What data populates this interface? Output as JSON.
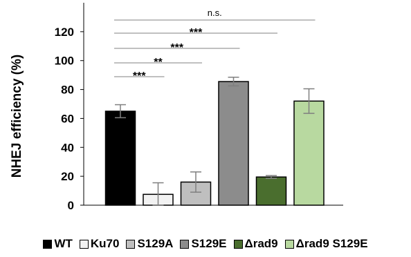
{
  "chart_data": {
    "type": "bar",
    "title": "",
    "xlabel": "",
    "ylabel": "NHEJ efficiency (%)",
    "ylim": [
      0,
      140
    ],
    "yticks": [
      0,
      20,
      40,
      60,
      80,
      100,
      120
    ],
    "grid": false,
    "legend_position": "bottom",
    "series": [
      {
        "name": "WT",
        "value": 65,
        "error": 4.5,
        "color": "#000000"
      },
      {
        "name": "Ku70",
        "value": 7.5,
        "error": 8,
        "color": "#f2f2f2"
      },
      {
        "name": "S129A",
        "value": 16,
        "error": 7,
        "color": "#bfbfbf"
      },
      {
        "name": "S129E",
        "value": 85.5,
        "error": 3,
        "color": "#8c8c8c"
      },
      {
        "name": "Δrad9",
        "value": 19.5,
        "error": 1,
        "color": "#4a6e2e"
      },
      {
        "name": "Δrad9 S129E",
        "value": 72,
        "error": 8.5,
        "color": "#b8d9a0"
      }
    ],
    "annotations": [
      {
        "text": "n.s.",
        "from": "WT",
        "to": "Δrad9 S129E"
      },
      {
        "text": "***",
        "from": "WT",
        "to": "Δrad9"
      },
      {
        "text": "***",
        "from": "WT",
        "to": "S129E"
      },
      {
        "text": "**",
        "from": "WT",
        "to": "S129A"
      },
      {
        "text": "***",
        "from": "WT",
        "to": "Ku70"
      }
    ]
  }
}
